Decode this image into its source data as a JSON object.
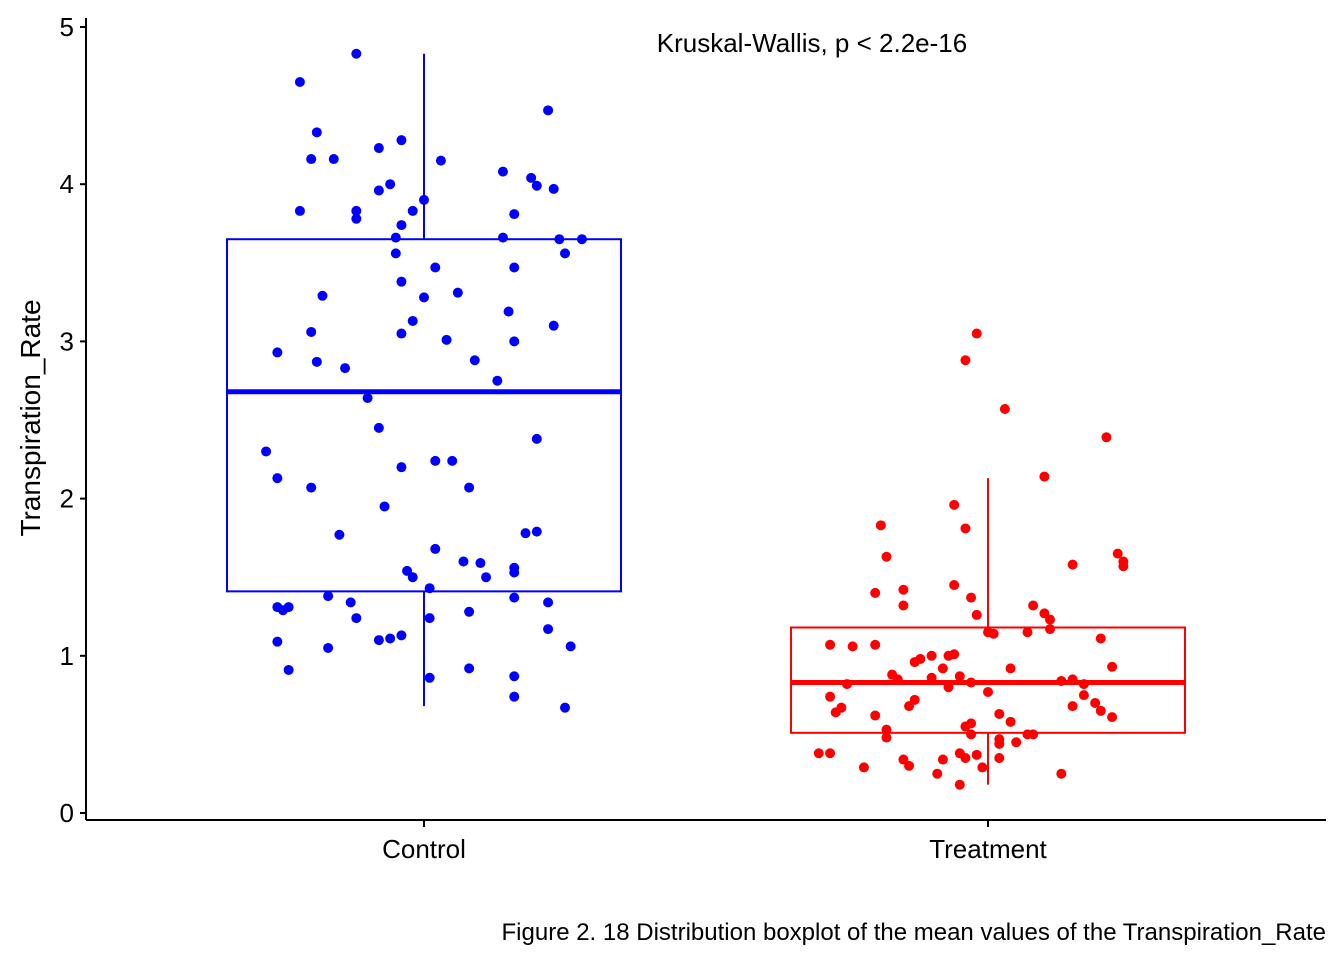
{
  "chart_data": {
    "type": "boxplot",
    "title": "",
    "xlabel": "",
    "ylabel": "Transpiration_Rate",
    "ylim": [
      0,
      5
    ],
    "yticks": [
      "0",
      "1",
      "2",
      "3",
      "4",
      "5"
    ],
    "categories": [
      "Control",
      "Treatment"
    ],
    "annotation": "Kruskal-Wallis, p < 2.2e-16",
    "caption": "Figure 2. 18 Distribution boxplot of the mean values of the Transpiration_Rate",
    "grid": false,
    "legend": "none",
    "groups": [
      {
        "label": "Control",
        "color": "#0000FF",
        "box": {
          "lower_whisker": 0.68,
          "q1": 1.41,
          "median": 2.68,
          "q3": 3.65,
          "upper_whisker": 4.83
        },
        "points": [
          {
            "x": -0.12,
            "y": 4.83
          },
          {
            "x": -0.22,
            "y": 4.65
          },
          {
            "x": 0.22,
            "y": 4.47
          },
          {
            "x": -0.19,
            "y": 4.33
          },
          {
            "x": -0.04,
            "y": 4.28
          },
          {
            "x": -0.08,
            "y": 4.23
          },
          {
            "x": -0.2,
            "y": 4.16
          },
          {
            "x": -0.16,
            "y": 4.16
          },
          {
            "x": 0.03,
            "y": 4.15
          },
          {
            "x": 0.14,
            "y": 4.08
          },
          {
            "x": 0.19,
            "y": 4.04
          },
          {
            "x": -0.06,
            "y": 4.0
          },
          {
            "x": 0.2,
            "y": 3.99
          },
          {
            "x": 0.23,
            "y": 3.97
          },
          {
            "x": -0.08,
            "y": 3.96
          },
          {
            "x": 0.0,
            "y": 3.9
          },
          {
            "x": -0.22,
            "y": 3.83
          },
          {
            "x": -0.12,
            "y": 3.83
          },
          {
            "x": -0.02,
            "y": 3.83
          },
          {
            "x": 0.16,
            "y": 3.81
          },
          {
            "x": -0.12,
            "y": 3.78
          },
          {
            "x": -0.04,
            "y": 3.74
          },
          {
            "x": -0.05,
            "y": 3.66
          },
          {
            "x": 0.14,
            "y": 3.66
          },
          {
            "x": 0.24,
            "y": 3.65
          },
          {
            "x": 0.28,
            "y": 3.65
          },
          {
            "x": -0.05,
            "y": 3.56
          },
          {
            "x": 0.25,
            "y": 3.56
          },
          {
            "x": 0.02,
            "y": 3.47
          },
          {
            "x": 0.16,
            "y": 3.47
          },
          {
            "x": -0.04,
            "y": 3.38
          },
          {
            "x": 0.06,
            "y": 3.31
          },
          {
            "x": -0.18,
            "y": 3.29
          },
          {
            "x": 0.0,
            "y": 3.28
          },
          {
            "x": 0.15,
            "y": 3.19
          },
          {
            "x": -0.02,
            "y": 3.13
          },
          {
            "x": 0.23,
            "y": 3.1
          },
          {
            "x": -0.2,
            "y": 3.06
          },
          {
            "x": -0.04,
            "y": 3.05
          },
          {
            "x": 0.04,
            "y": 3.01
          },
          {
            "x": 0.16,
            "y": 3.0
          },
          {
            "x": -0.26,
            "y": 2.93
          },
          {
            "x": -0.19,
            "y": 2.87
          },
          {
            "x": 0.09,
            "y": 2.88
          },
          {
            "x": -0.14,
            "y": 2.83
          },
          {
            "x": 0.13,
            "y": 2.75
          },
          {
            "x": -0.1,
            "y": 2.64
          },
          {
            "x": -0.08,
            "y": 2.45
          },
          {
            "x": 0.2,
            "y": 2.38
          },
          {
            "x": -0.28,
            "y": 2.3
          },
          {
            "x": 0.02,
            "y": 2.24
          },
          {
            "x": 0.05,
            "y": 2.24
          },
          {
            "x": -0.04,
            "y": 2.2
          },
          {
            "x": -0.26,
            "y": 2.13
          },
          {
            "x": -0.2,
            "y": 2.07
          },
          {
            "x": 0.08,
            "y": 2.07
          },
          {
            "x": -0.07,
            "y": 1.95
          },
          {
            "x": 0.2,
            "y": 1.79
          },
          {
            "x": 0.18,
            "y": 1.78
          },
          {
            "x": -0.15,
            "y": 1.77
          },
          {
            "x": 0.02,
            "y": 1.68
          },
          {
            "x": 0.07,
            "y": 1.6
          },
          {
            "x": 0.1,
            "y": 1.59
          },
          {
            "x": 0.16,
            "y": 1.56
          },
          {
            "x": 0.16,
            "y": 1.53
          },
          {
            "x": -0.03,
            "y": 1.54
          },
          {
            "x": -0.02,
            "y": 1.5
          },
          {
            "x": 0.11,
            "y": 1.5
          },
          {
            "x": 0.01,
            "y": 1.43
          },
          {
            "x": -0.17,
            "y": 1.38
          },
          {
            "x": 0.16,
            "y": 1.37
          },
          {
            "x": -0.13,
            "y": 1.34
          },
          {
            "x": 0.22,
            "y": 1.34
          },
          {
            "x": -0.26,
            "y": 1.31
          },
          {
            "x": -0.25,
            "y": 1.29
          },
          {
            "x": -0.24,
            "y": 1.31
          },
          {
            "x": 0.08,
            "y": 1.28
          },
          {
            "x": 0.01,
            "y": 1.24
          },
          {
            "x": -0.12,
            "y": 1.24
          },
          {
            "x": 0.22,
            "y": 1.17
          },
          {
            "x": -0.04,
            "y": 1.13
          },
          {
            "x": -0.08,
            "y": 1.1
          },
          {
            "x": -0.06,
            "y": 1.11
          },
          {
            "x": -0.26,
            "y": 1.09
          },
          {
            "x": -0.17,
            "y": 1.05
          },
          {
            "x": 0.26,
            "y": 1.06
          },
          {
            "x": 0.08,
            "y": 0.92
          },
          {
            "x": -0.24,
            "y": 0.91
          },
          {
            "x": 0.16,
            "y": 0.87
          },
          {
            "x": 0.01,
            "y": 0.86
          },
          {
            "x": 0.16,
            "y": 0.74
          },
          {
            "x": 0.25,
            "y": 0.67
          }
        ]
      },
      {
        "label": "Treatment",
        "color": "#FF0000",
        "box": {
          "lower_whisker": 0.18,
          "q1": 0.51,
          "median": 0.83,
          "q3": 1.18,
          "upper_whisker": 2.13
        },
        "points": [
          {
            "x": -0.02,
            "y": 3.05
          },
          {
            "x": -0.04,
            "y": 2.88
          },
          {
            "x": 0.03,
            "y": 2.57
          },
          {
            "x": 0.21,
            "y": 2.39
          },
          {
            "x": 0.1,
            "y": 2.14
          },
          {
            "x": -0.06,
            "y": 1.96
          },
          {
            "x": -0.19,
            "y": 1.83
          },
          {
            "x": -0.04,
            "y": 1.81
          },
          {
            "x": 0.23,
            "y": 1.65
          },
          {
            "x": -0.18,
            "y": 1.63
          },
          {
            "x": 0.24,
            "y": 1.6
          },
          {
            "x": 0.15,
            "y": 1.58
          },
          {
            "x": 0.24,
            "y": 1.57
          },
          {
            "x": -0.06,
            "y": 1.45
          },
          {
            "x": -0.15,
            "y": 1.42
          },
          {
            "x": -0.2,
            "y": 1.4
          },
          {
            "x": -0.03,
            "y": 1.37
          },
          {
            "x": -0.15,
            "y": 1.32
          },
          {
            "x": 0.08,
            "y": 1.32
          },
          {
            "x": 0.1,
            "y": 1.27
          },
          {
            "x": 0.11,
            "y": 1.23
          },
          {
            "x": -0.02,
            "y": 1.26
          },
          {
            "x": 0.0,
            "y": 1.15
          },
          {
            "x": 0.01,
            "y": 1.14
          },
          {
            "x": 0.07,
            "y": 1.15
          },
          {
            "x": 0.11,
            "y": 1.17
          },
          {
            "x": 0.2,
            "y": 1.11
          },
          {
            "x": -0.28,
            "y": 1.07
          },
          {
            "x": -0.24,
            "y": 1.06
          },
          {
            "x": -0.2,
            "y": 1.07
          },
          {
            "x": -0.1,
            "y": 1.0
          },
          {
            "x": -0.06,
            "y": 1.01
          },
          {
            "x": -0.07,
            "y": 1.0
          },
          {
            "x": -0.12,
            "y": 0.98
          },
          {
            "x": -0.13,
            "y": 0.96
          },
          {
            "x": 0.22,
            "y": 0.93
          },
          {
            "x": -0.08,
            "y": 0.92
          },
          {
            "x": 0.04,
            "y": 0.92
          },
          {
            "x": -0.17,
            "y": 0.88
          },
          {
            "x": -0.1,
            "y": 0.86
          },
          {
            "x": -0.16,
            "y": 0.85
          },
          {
            "x": -0.05,
            "y": 0.87
          },
          {
            "x": -0.03,
            "y": 0.83
          },
          {
            "x": 0.13,
            "y": 0.84
          },
          {
            "x": 0.15,
            "y": 0.85
          },
          {
            "x": 0.17,
            "y": 0.82
          },
          {
            "x": -0.25,
            "y": 0.82
          },
          {
            "x": -0.07,
            "y": 0.8
          },
          {
            "x": 0.0,
            "y": 0.77
          },
          {
            "x": -0.28,
            "y": 0.74
          },
          {
            "x": 0.17,
            "y": 0.75
          },
          {
            "x": -0.13,
            "y": 0.72
          },
          {
            "x": 0.19,
            "y": 0.7
          },
          {
            "x": -0.14,
            "y": 0.68
          },
          {
            "x": -0.26,
            "y": 0.67
          },
          {
            "x": 0.15,
            "y": 0.68
          },
          {
            "x": -0.27,
            "y": 0.64
          },
          {
            "x": 0.02,
            "y": 0.63
          },
          {
            "x": 0.22,
            "y": 0.61
          },
          {
            "x": 0.2,
            "y": 0.65
          },
          {
            "x": -0.2,
            "y": 0.62
          },
          {
            "x": 0.04,
            "y": 0.58
          },
          {
            "x": -0.04,
            "y": 0.55
          },
          {
            "x": -0.03,
            "y": 0.57
          },
          {
            "x": -0.18,
            "y": 0.53
          },
          {
            "x": -0.03,
            "y": 0.5
          },
          {
            "x": 0.07,
            "y": 0.5
          },
          {
            "x": 0.08,
            "y": 0.5
          },
          {
            "x": -0.18,
            "y": 0.48
          },
          {
            "x": 0.02,
            "y": 0.47
          },
          {
            "x": 0.05,
            "y": 0.45
          },
          {
            "x": 0.02,
            "y": 0.44
          },
          {
            "x": -0.3,
            "y": 0.38
          },
          {
            "x": -0.28,
            "y": 0.38
          },
          {
            "x": -0.05,
            "y": 0.38
          },
          {
            "x": -0.02,
            "y": 0.37
          },
          {
            "x": -0.04,
            "y": 0.35
          },
          {
            "x": -0.08,
            "y": 0.34
          },
          {
            "x": -0.15,
            "y": 0.34
          },
          {
            "x": 0.02,
            "y": 0.35
          },
          {
            "x": -0.14,
            "y": 0.3
          },
          {
            "x": -0.22,
            "y": 0.29
          },
          {
            "x": -0.01,
            "y": 0.29
          },
          {
            "x": -0.09,
            "y": 0.25
          },
          {
            "x": 0.13,
            "y": 0.25
          },
          {
            "x": -0.05,
            "y": 0.18
          }
        ]
      }
    ]
  }
}
